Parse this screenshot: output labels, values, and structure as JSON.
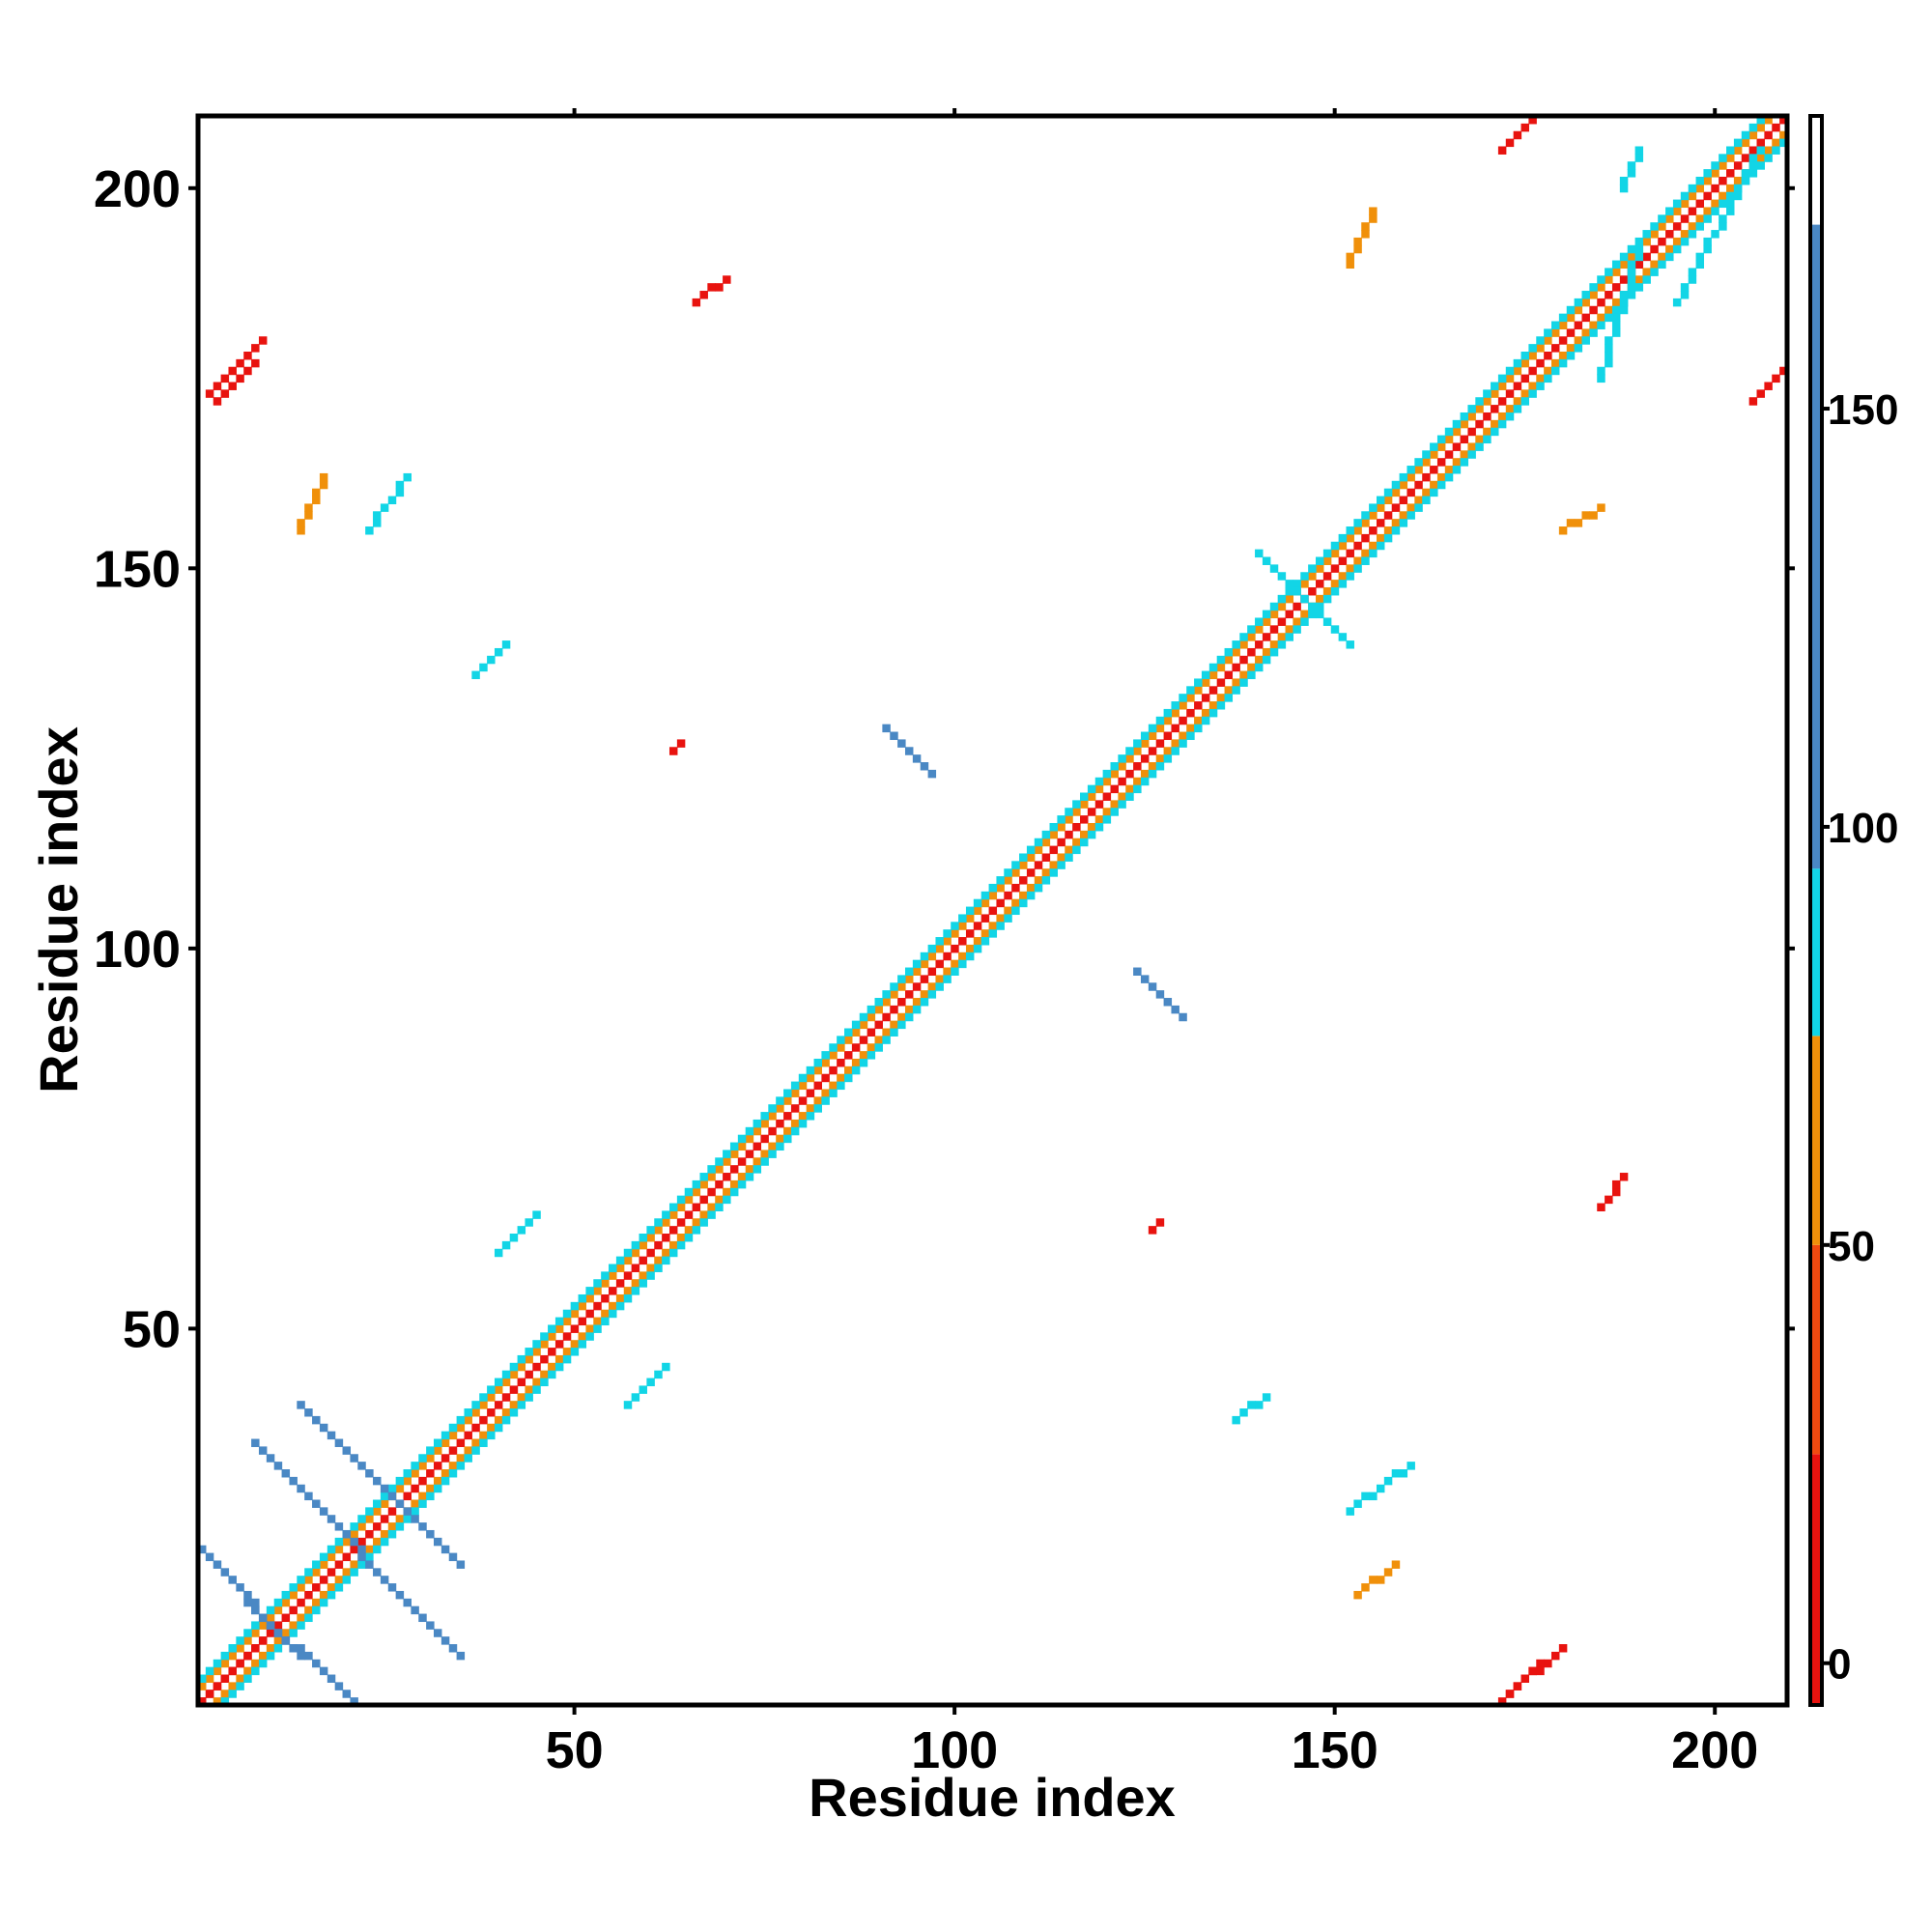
{
  "chart_data": {
    "type": "heatmap",
    "title": "",
    "xlabel": "Residue index",
    "ylabel": "Residue index",
    "xlim": [
      1,
      209
    ],
    "ylim": [
      1,
      209
    ],
    "x_ticks": [
      50,
      100,
      150,
      200
    ],
    "y_ticks": [
      50,
      100,
      150,
      200
    ],
    "colorbar": {
      "range": [
        -5,
        185
      ],
      "ticks": [
        0,
        50,
        100,
        150
      ],
      "bands": [
        {
          "from": -5,
          "to": 25,
          "color": "#e8130f"
        },
        {
          "from": 25,
          "to": 50,
          "color": "#f04a10"
        },
        {
          "from": 50,
          "to": 75,
          "color": "#f0900a"
        },
        {
          "from": 75,
          "to": 95,
          "color": "#12d5e6"
        },
        {
          "from": 95,
          "to": 172,
          "color": "#4a88c4"
        },
        {
          "from": 172,
          "to": 185,
          "color": "#ffffff"
        }
      ]
    },
    "grid": false,
    "legend": "colorbar-right",
    "contact_regions": [
      {
        "x": [
          1,
          9
        ],
        "y": [
          1,
          9
        ],
        "value": 5
      },
      {
        "x": [
          1,
          210
        ],
        "y": [
          1,
          210
        ],
        "value": 10
      },
      {
        "x": [
          1,
          207
        ],
        "y": [
          3,
          209
        ],
        "value": 60
      },
      {
        "x": [
          3,
          209
        ],
        "y": [
          1,
          207
        ],
        "value": 60
      },
      {
        "x": [
          1,
          206
        ],
        "y": [
          4,
          209
        ],
        "value": 85
      },
      {
        "x": [
          4,
          209
        ],
        "y": [
          1,
          206
        ],
        "value": 85
      },
      {
        "x": [
          1,
          14
        ],
        "y": [
          21,
          7
        ],
        "value": 130
      },
      {
        "x": [
          7,
          21
        ],
        "y": [
          14,
          1
        ],
        "value": 130
      },
      {
        "x": [
          8,
          35
        ],
        "y": [
          35,
          7
        ],
        "value": 130
      },
      {
        "x": [
          14,
          35
        ],
        "y": [
          40,
          19
        ],
        "value": 130
      },
      {
        "x": [
          91,
          97
        ],
        "y": [
          129,
          123
        ],
        "value": 130
      },
      {
        "x": [
          124,
          130
        ],
        "y": [
          97,
          91
        ],
        "value": 130
      },
      {
        "x": [
          140,
          152
        ],
        "y": [
          152,
          140
        ],
        "value": 90
      },
      {
        "x": [
          172,
          177
        ],
        "y": [
          1,
          6
        ],
        "value": 5
      },
      {
        "x": [
          173,
          180
        ],
        "y": [
          2,
          8
        ],
        "value": 20
      },
      {
        "x": [
          3,
          8
        ],
        "y": [
          172,
          177
        ],
        "value": 5
      },
      {
        "x": [
          2,
          9
        ],
        "y": [
          173,
          180
        ],
        "value": 20
      },
      {
        "x": [
          172,
          176
        ],
        "y": [
          205,
          209
        ],
        "value": 10
      },
      {
        "x": [
          205,
          209
        ],
        "y": [
          172,
          176
        ],
        "value": 10
      },
      {
        "x": [
          66,
          70
        ],
        "y": [
          185,
          188
        ],
        "value": 10
      },
      {
        "x": [
          185,
          188
        ],
        "y": [
          66,
          70
        ],
        "value": 10
      },
      {
        "x": [
          40,
          45
        ],
        "y": [
          60,
          65
        ],
        "value": 88
      },
      {
        "x": [
          57,
          62
        ],
        "y": [
          40,
          45
        ],
        "value": 88
      },
      {
        "x": [
          23,
          28
        ],
        "y": [
          155,
          162
        ],
        "value": 88
      },
      {
        "x": [
          152,
          160
        ],
        "y": [
          26,
          32
        ],
        "value": 88
      },
      {
        "x": [
          152,
          155
        ],
        "y": [
          190,
          197
        ],
        "value": 60
      },
      {
        "x": [
          180,
          185
        ],
        "y": [
          155,
          158
        ],
        "value": 55
      },
      {
        "x": [
          185,
          190
        ],
        "y": [
          175,
          192
        ],
        "value": 88
      },
      {
        "x": [
          195,
          206
        ],
        "y": [
          185,
          205
        ],
        "value": 88
      },
      {
        "x": [
          14,
          17
        ],
        "y": [
          155,
          162
        ],
        "value": 60
      },
      {
        "x": [
          153,
          158
        ],
        "y": [
          15,
          19
        ],
        "value": 60
      },
      {
        "x": [
          137,
          141
        ],
        "y": [
          38,
          41
        ],
        "value": 88
      },
      {
        "x": [
          37,
          41
        ],
        "y": [
          136,
          140
        ],
        "value": 88
      },
      {
        "x": [
          188,
          190
        ],
        "y": [
          200,
          205
        ],
        "value": 88
      },
      {
        "x": [
          126,
          127
        ],
        "y": [
          63,
          64
        ],
        "value": 5
      },
      {
        "x": [
          63,
          64
        ],
        "y": [
          126,
          127
        ],
        "value": 5
      }
    ]
  }
}
